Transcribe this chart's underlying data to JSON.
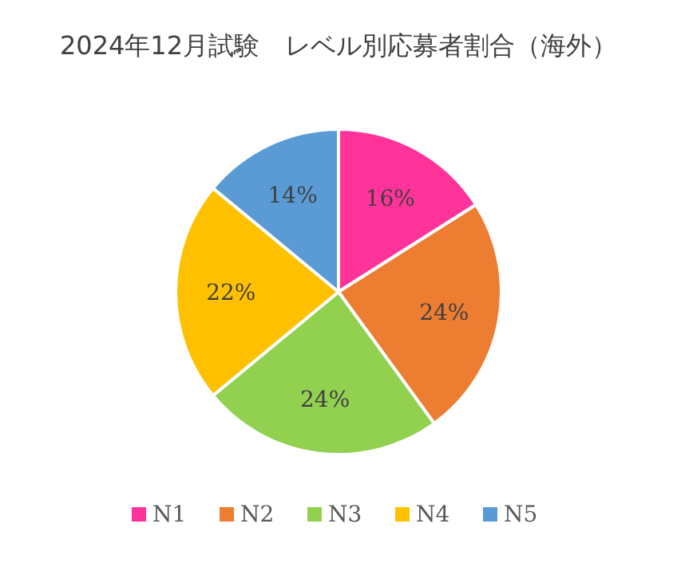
{
  "chart_data": {
    "type": "pie",
    "title": "2024年12月試験　レベル別応募者割合（海外）",
    "categories": [
      "N1",
      "N2",
      "N3",
      "N4",
      "N5"
    ],
    "values": [
      16,
      24,
      24,
      22,
      14
    ],
    "value_labels": [
      "16%",
      "24%",
      "24%",
      "22%",
      "14%"
    ],
    "colors": [
      "#ff3399",
      "#ed7d31",
      "#92d050",
      "#ffc000",
      "#5b9bd5"
    ],
    "legend": "bottom"
  }
}
